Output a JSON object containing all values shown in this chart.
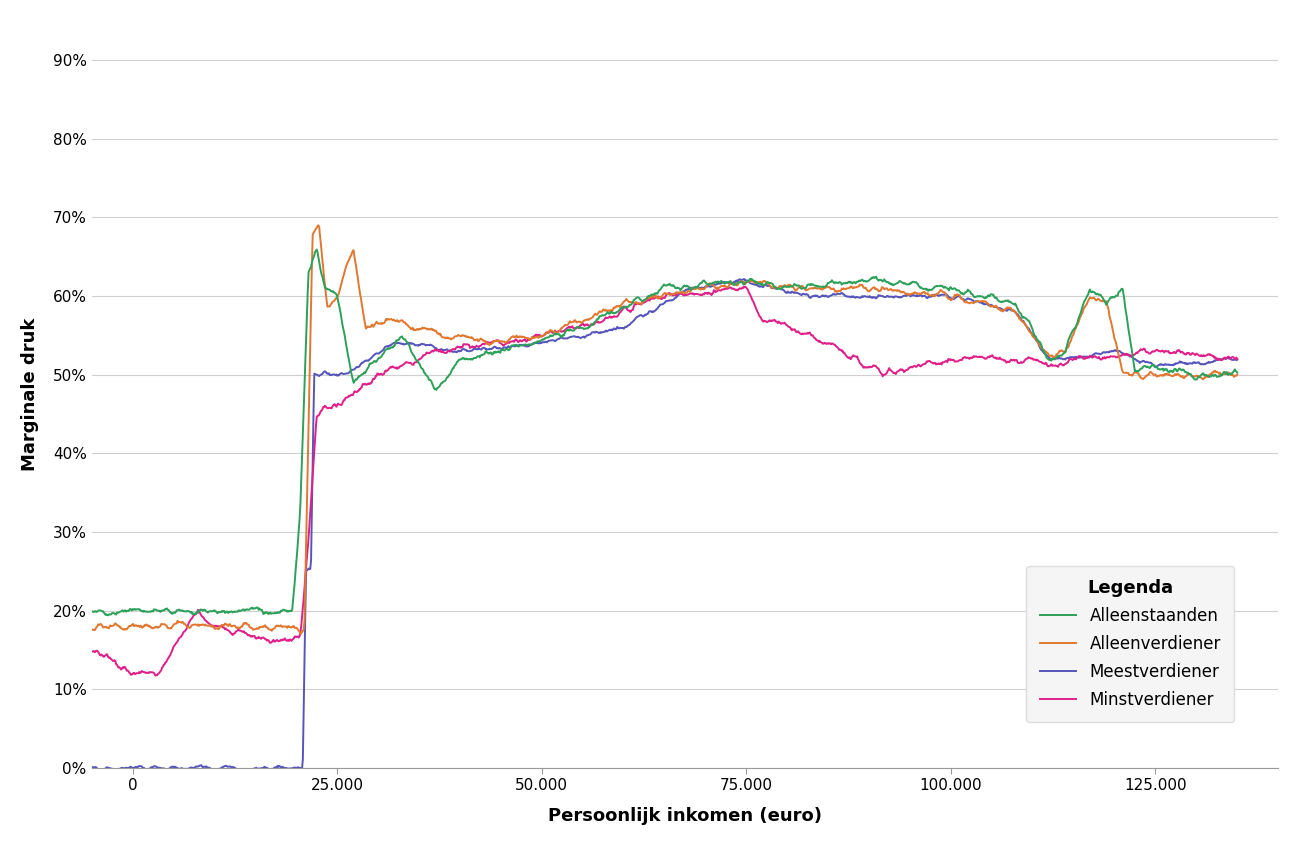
{
  "xlabel": "Persoonlijk inkomen (euro)",
  "ylabel": "Marginale druk",
  "background_color": "#ffffff",
  "plot_background": "#ffffff",
  "legend_title": "Legenda",
  "series": {
    "Alleenstaanden": {
      "color": "#2da05a",
      "linewidth": 1.4
    },
    "Alleenverdiener": {
      "color": "#e07830",
      "linewidth": 1.4
    },
    "Meestverdiener": {
      "color": "#5555bb",
      "linewidth": 1.4
    },
    "Minstverdiener": {
      "color": "#e0208a",
      "linewidth": 1.4
    }
  },
  "xlim": [
    -5000,
    140000
  ],
  "ylim": [
    0.0,
    0.95
  ],
  "xticks": [
    0,
    25000,
    50000,
    75000,
    100000,
    125000
  ],
  "yticks": [
    0.0,
    0.1,
    0.2,
    0.3,
    0.4,
    0.5,
    0.6,
    0.7,
    0.8,
    0.9
  ],
  "grid_color": "#d0d0d0",
  "grid_linewidth": 0.8
}
